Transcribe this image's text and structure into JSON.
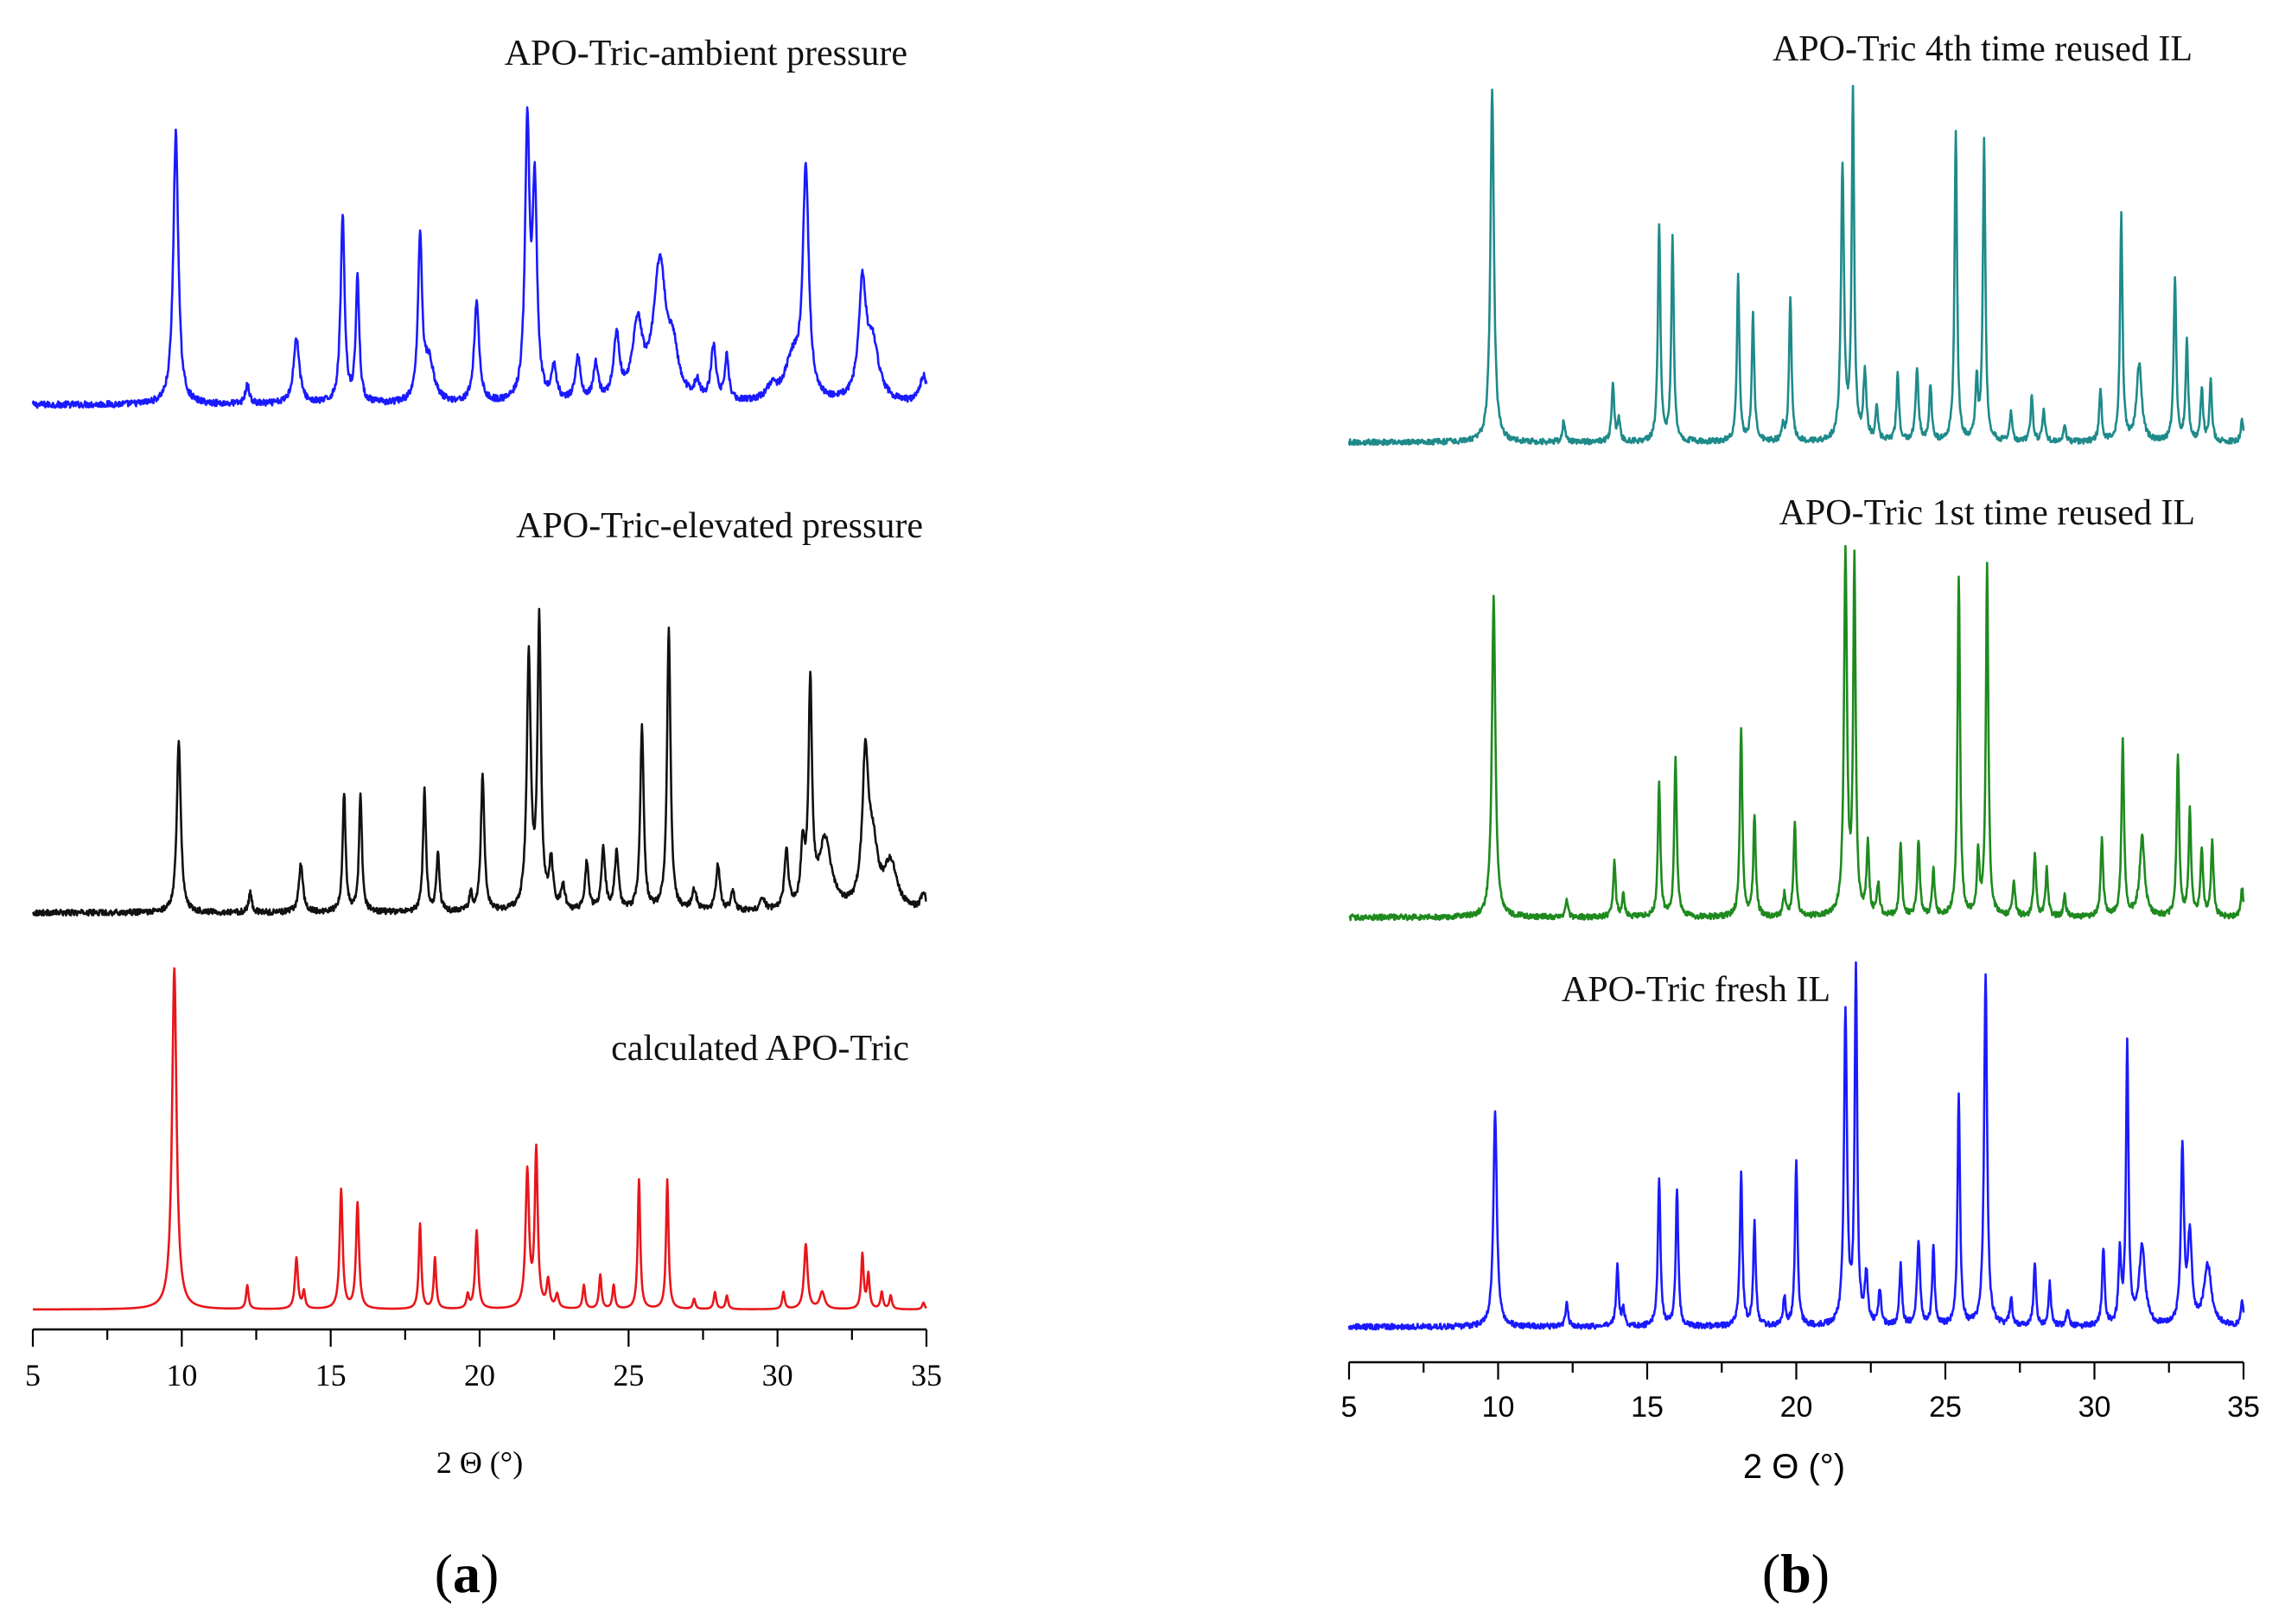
{
  "figure": {
    "panels": [
      {
        "id": "a",
        "label_open": "(",
        "label_letter": "a",
        "label_close": ")",
        "xlabel": "2 Θ (°)",
        "ticks": [
          "5",
          "10",
          "15",
          "20",
          "25",
          "30",
          "35"
        ]
      },
      {
        "id": "b",
        "label_open": "(",
        "label_letter": "b",
        "label_close": ")",
        "xlabel": "2 Θ (°)",
        "ticks": [
          "5",
          "10",
          "15",
          "20",
          "25",
          "30",
          "35"
        ]
      }
    ]
  },
  "chart_data": [
    {
      "type": "line",
      "title": "(a)",
      "xlabel": "2 Θ (°)",
      "ylabel": "",
      "xlim": [
        5,
        35
      ],
      "x_ticks": [
        5,
        10,
        15,
        20,
        25,
        30,
        35
      ],
      "y_axis_shown": false,
      "series": [
        {
          "name": "APO-Tric-ambient pressure",
          "color": "#1a1aff",
          "baseline": 0.02,
          "noise": 0.012,
          "peaks": [
            [
              9.8,
              1.0,
              0.1
            ],
            [
              12.2,
              0.07,
              0.08
            ],
            [
              13.85,
              0.24,
              0.12
            ],
            [
              15.4,
              0.69,
              0.08
            ],
            [
              15.9,
              0.46,
              0.07
            ],
            [
              18.0,
              0.6,
              0.08
            ],
            [
              18.3,
              0.15,
              0.2
            ],
            [
              19.9,
              0.37,
              0.1
            ],
            [
              21.6,
              1.0,
              0.09
            ],
            [
              21.85,
              0.76,
              0.09
            ],
            [
              22.5,
              0.12,
              0.1
            ],
            [
              23.3,
              0.16,
              0.1
            ],
            [
              23.9,
              0.13,
              0.1
            ],
            [
              24.6,
              0.23,
              0.12
            ],
            [
              25.3,
              0.27,
              0.2
            ],
            [
              26.05,
              0.5,
              0.25
            ],
            [
              26.5,
              0.15,
              0.2
            ],
            [
              27.3,
              0.06,
              0.1
            ],
            [
              27.85,
              0.2,
              0.1
            ],
            [
              28.3,
              0.16,
              0.08
            ],
            [
              29.8,
              0.05,
              0.2
            ],
            [
              30.5,
              0.15,
              0.3
            ],
            [
              30.95,
              0.83,
              0.12
            ],
            [
              32.85,
              0.41,
              0.15
            ],
            [
              33.2,
              0.2,
              0.25
            ],
            [
              34.9,
              0.1,
              0.15
            ]
          ]
        },
        {
          "name": "APO-Tric-elevated pressure",
          "color": "#111111",
          "baseline": 0.01,
          "noise": 0.01,
          "peaks": [
            [
              9.9,
              0.6,
              0.08
            ],
            [
              12.3,
              0.07,
              0.06
            ],
            [
              14.0,
              0.17,
              0.08
            ],
            [
              15.45,
              0.41,
              0.06
            ],
            [
              16.0,
              0.4,
              0.06
            ],
            [
              18.15,
              0.42,
              0.06
            ],
            [
              18.6,
              0.2,
              0.06
            ],
            [
              19.7,
              0.06,
              0.06
            ],
            [
              20.1,
              0.47,
              0.07
            ],
            [
              21.65,
              0.87,
              0.08
            ],
            [
              22.0,
              0.99,
              0.07
            ],
            [
              22.4,
              0.16,
              0.08
            ],
            [
              22.8,
              0.08,
              0.08
            ],
            [
              23.6,
              0.17,
              0.07
            ],
            [
              24.15,
              0.21,
              0.08
            ],
            [
              24.6,
              0.2,
              0.08
            ],
            [
              25.45,
              0.64,
              0.07
            ],
            [
              26.35,
              0.98,
              0.07
            ],
            [
              27.2,
              0.07,
              0.1
            ],
            [
              28.0,
              0.16,
              0.08
            ],
            [
              28.5,
              0.07,
              0.08
            ],
            [
              29.5,
              0.04,
              0.1
            ],
            [
              30.3,
              0.2,
              0.08
            ],
            [
              30.85,
              0.2,
              0.08
            ],
            [
              31.1,
              0.76,
              0.07
            ],
            [
              31.6,
              0.24,
              0.25
            ],
            [
              32.95,
              0.5,
              0.12
            ],
            [
              33.2,
              0.2,
              0.2
            ],
            [
              33.8,
              0.16,
              0.25
            ],
            [
              34.9,
              0.06,
              0.1
            ]
          ]
        },
        {
          "name": "calculated APO-Tric",
          "color": "#e8161b",
          "baseline": 0.0,
          "noise": 0.0,
          "peaks": [
            [
              9.75,
              1.0,
              0.09
            ],
            [
              12.2,
              0.07,
              0.05
            ],
            [
              13.85,
              0.15,
              0.06
            ],
            [
              14.1,
              0.05,
              0.05
            ],
            [
              15.35,
              0.35,
              0.06
            ],
            [
              15.9,
              0.31,
              0.06
            ],
            [
              18.0,
              0.25,
              0.05
            ],
            [
              18.5,
              0.15,
              0.05
            ],
            [
              19.6,
              0.04,
              0.05
            ],
            [
              19.9,
              0.23,
              0.06
            ],
            [
              21.6,
              0.4,
              0.07
            ],
            [
              21.9,
              0.46,
              0.06
            ],
            [
              22.3,
              0.08,
              0.06
            ],
            [
              22.6,
              0.04,
              0.06
            ],
            [
              23.5,
              0.07,
              0.05
            ],
            [
              24.05,
              0.1,
              0.05
            ],
            [
              24.5,
              0.07,
              0.05
            ],
            [
              25.35,
              0.38,
              0.05
            ],
            [
              26.3,
              0.38,
              0.05
            ],
            [
              27.2,
              0.03,
              0.05
            ],
            [
              27.9,
              0.05,
              0.05
            ],
            [
              28.3,
              0.04,
              0.05
            ],
            [
              30.2,
              0.05,
              0.05
            ],
            [
              30.95,
              0.19,
              0.07
            ],
            [
              31.5,
              0.05,
              0.1
            ],
            [
              32.85,
              0.16,
              0.05
            ],
            [
              33.05,
              0.1,
              0.05
            ],
            [
              33.5,
              0.05,
              0.05
            ],
            [
              33.8,
              0.04,
              0.05
            ],
            [
              34.9,
              0.02,
              0.05
            ]
          ]
        }
      ]
    },
    {
      "type": "line",
      "title": "(b)",
      "xlabel": "2 Θ (°)",
      "ylabel": "",
      "xlim": [
        5,
        35
      ],
      "x_ticks": [
        5,
        10,
        15,
        20,
        25,
        30,
        35
      ],
      "y_axis_shown": false,
      "series": [
        {
          "name": "APO-Tric 4th time reused IL",
          "color": "#1f8a8a",
          "baseline": 0.0,
          "noise": 0.008,
          "peaks": [
            [
              9.8,
              1.0,
              0.07
            ],
            [
              12.2,
              0.06,
              0.05
            ],
            [
              13.85,
              0.17,
              0.05
            ],
            [
              14.05,
              0.06,
              0.05
            ],
            [
              15.4,
              0.62,
              0.05
            ],
            [
              15.85,
              0.58,
              0.05
            ],
            [
              18.05,
              0.47,
              0.05
            ],
            [
              18.55,
              0.36,
              0.05
            ],
            [
              19.55,
              0.04,
              0.05
            ],
            [
              19.8,
              0.41,
              0.05
            ],
            [
              21.55,
              0.78,
              0.06
            ],
            [
              21.9,
              0.98,
              0.05
            ],
            [
              22.3,
              0.19,
              0.06
            ],
            [
              22.7,
              0.1,
              0.05
            ],
            [
              23.4,
              0.19,
              0.05
            ],
            [
              24.05,
              0.2,
              0.06
            ],
            [
              24.5,
              0.16,
              0.05
            ],
            [
              25.35,
              0.88,
              0.05
            ],
            [
              26.05,
              0.17,
              0.05
            ],
            [
              26.3,
              0.85,
              0.05
            ],
            [
              27.2,
              0.08,
              0.05
            ],
            [
              27.9,
              0.13,
              0.05
            ],
            [
              28.3,
              0.09,
              0.05
            ],
            [
              29.0,
              0.04,
              0.05
            ],
            [
              30.2,
              0.15,
              0.05
            ],
            [
              30.9,
              0.64,
              0.05
            ],
            [
              31.5,
              0.22,
              0.1
            ],
            [
              32.7,
              0.47,
              0.05
            ],
            [
              33.1,
              0.28,
              0.05
            ],
            [
              33.6,
              0.15,
              0.05
            ],
            [
              33.9,
              0.17,
              0.05
            ],
            [
              34.95,
              0.06,
              0.05
            ]
          ]
        },
        {
          "name": "APO-Tric 1st time reused IL",
          "color": "#1e8a1e",
          "baseline": 0.0,
          "noise": 0.008,
          "peaks": [
            [
              9.85,
              0.89,
              0.07
            ],
            [
              12.3,
              0.05,
              0.05
            ],
            [
              13.9,
              0.15,
              0.05
            ],
            [
              14.2,
              0.06,
              0.05
            ],
            [
              15.4,
              0.37,
              0.05
            ],
            [
              15.95,
              0.44,
              0.05
            ],
            [
              18.15,
              0.52,
              0.05
            ],
            [
              18.6,
              0.28,
              0.05
            ],
            [
              19.6,
              0.06,
              0.05
            ],
            [
              19.95,
              0.26,
              0.05
            ],
            [
              21.65,
              1.0,
              0.06
            ],
            [
              21.95,
              0.97,
              0.05
            ],
            [
              22.4,
              0.2,
              0.05
            ],
            [
              22.75,
              0.09,
              0.05
            ],
            [
              23.5,
              0.2,
              0.05
            ],
            [
              24.1,
              0.21,
              0.05
            ],
            [
              24.6,
              0.13,
              0.05
            ],
            [
              25.45,
              0.94,
              0.05
            ],
            [
              26.1,
              0.17,
              0.05
            ],
            [
              26.4,
              0.97,
              0.05
            ],
            [
              27.3,
              0.1,
              0.05
            ],
            [
              28.0,
              0.17,
              0.05
            ],
            [
              28.4,
              0.13,
              0.05
            ],
            [
              29.0,
              0.06,
              0.05
            ],
            [
              30.25,
              0.22,
              0.05
            ],
            [
              30.95,
              0.49,
              0.05
            ],
            [
              31.6,
              0.22,
              0.1
            ],
            [
              32.8,
              0.45,
              0.05
            ],
            [
              33.2,
              0.29,
              0.05
            ],
            [
              33.6,
              0.19,
              0.05
            ],
            [
              33.95,
              0.21,
              0.05
            ],
            [
              34.95,
              0.08,
              0.05
            ]
          ]
        },
        {
          "name": "APO-Tric fresh IL",
          "color": "#1a1aff",
          "baseline": 0.0,
          "noise": 0.008,
          "peaks": [
            [
              9.9,
              0.61,
              0.07
            ],
            [
              12.3,
              0.07,
              0.05
            ],
            [
              14.0,
              0.17,
              0.05
            ],
            [
              14.2,
              0.05,
              0.05
            ],
            [
              15.4,
              0.42,
              0.05
            ],
            [
              16.0,
              0.39,
              0.05
            ],
            [
              18.15,
              0.43,
              0.05
            ],
            [
              18.6,
              0.29,
              0.05
            ],
            [
              19.6,
              0.08,
              0.05
            ],
            [
              20.0,
              0.47,
              0.05
            ],
            [
              21.65,
              0.88,
              0.06
            ],
            [
              22.0,
              1.0,
              0.05
            ],
            [
              22.35,
              0.14,
              0.06
            ],
            [
              22.8,
              0.1,
              0.05
            ],
            [
              23.5,
              0.17,
              0.05
            ],
            [
              24.1,
              0.24,
              0.06
            ],
            [
              24.6,
              0.22,
              0.05
            ],
            [
              25.45,
              0.65,
              0.05
            ],
            [
              26.35,
              0.99,
              0.06
            ],
            [
              27.2,
              0.08,
              0.05
            ],
            [
              28.0,
              0.18,
              0.05
            ],
            [
              28.5,
              0.12,
              0.05
            ],
            [
              29.1,
              0.05,
              0.05
            ],
            [
              30.3,
              0.22,
              0.05
            ],
            [
              30.85,
              0.2,
              0.05
            ],
            [
              31.1,
              0.79,
              0.05
            ],
            [
              31.6,
              0.22,
              0.12
            ],
            [
              32.95,
              0.5,
              0.06
            ],
            [
              33.2,
              0.25,
              0.08
            ],
            [
              33.8,
              0.17,
              0.15
            ],
            [
              34.95,
              0.07,
              0.05
            ]
          ]
        }
      ]
    }
  ]
}
